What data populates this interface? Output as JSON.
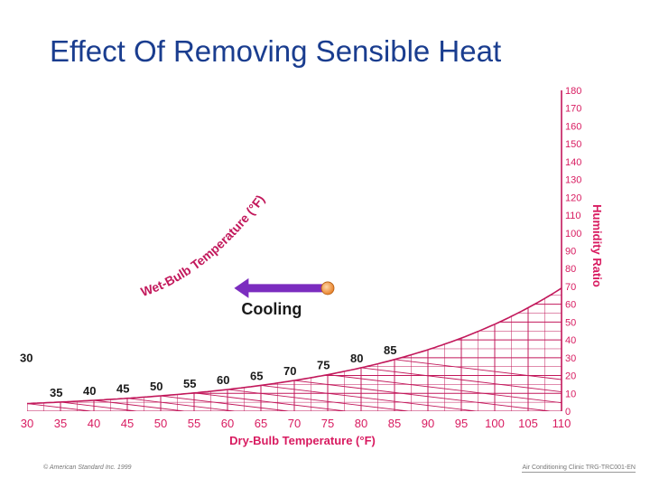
{
  "slide": {
    "title": "Effect Of Removing Sensible Heat",
    "footer_left": "© American Standard Inc. 1999",
    "footer_right": "Air Conditioning Clinic TRG-TRC001-EN"
  },
  "chart_data": {
    "type": "psychrometric",
    "xlabel": "Dry-Bulb Temperature (°F)",
    "ylabel": "Humidity Ratio",
    "curve_label": "Wet-Bulb Temperature (°F)",
    "x_ticks": [
      30,
      35,
      40,
      45,
      50,
      55,
      60,
      65,
      70,
      75,
      80,
      85,
      90,
      95,
      100,
      105,
      110
    ],
    "y_ticks": [
      0,
      10,
      20,
      30,
      40,
      50,
      60,
      70,
      80,
      90,
      100,
      110,
      120,
      130,
      140,
      150,
      160,
      170,
      180
    ],
    "xlim": [
      30,
      110
    ],
    "ylim": [
      0,
      180
    ],
    "wet_bulb_labels": [
      30,
      35,
      40,
      45,
      50,
      55,
      60,
      65,
      70,
      75,
      80,
      85
    ],
    "process": {
      "label": "Cooling",
      "start": {
        "x": 75,
        "y": 69
      },
      "end": {
        "x": 61,
        "y": 69
      }
    },
    "colors": {
      "grid": "#c2185b",
      "axis_text": "#d81b60",
      "arrow": "#7b2cbf",
      "point": "#e8822a"
    }
  }
}
